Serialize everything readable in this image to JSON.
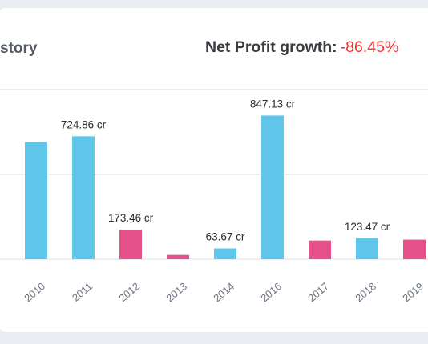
{
  "header": {
    "title_fragment": "story",
    "growth_label": "Net Profit growth:",
    "growth_value": "-86.45%"
  },
  "colors": {
    "positive": "#5fc6ea",
    "negative": "#e5508a",
    "grid": "#e6e9ee",
    "label": "#2b2b2b"
  },
  "chart_data": {
    "type": "bar",
    "categories": [
      "2010",
      "2011",
      "2012",
      "2013",
      "2014",
      "2016",
      "2017",
      "2018",
      "2019"
    ],
    "values": [
      690,
      724.86,
      173.46,
      25,
      63.67,
      847.13,
      110,
      123.47,
      115
    ],
    "value_labels": [
      "",
      "724.86 cr",
      "173.46 cr",
      "",
      "63.67 cr",
      "847.13 cr",
      "",
      "123.47 cr",
      ""
    ],
    "colors": [
      "#5fc6ea",
      "#5fc6ea",
      "#e5508a",
      "#e5508a",
      "#5fc6ea",
      "#5fc6ea",
      "#e5508a",
      "#5fc6ea",
      "#e5508a"
    ],
    "ylim": [
      0,
      1000
    ],
    "gridlines": [
      500,
      1000
    ],
    "grid": true,
    "title": "",
    "xlabel": "",
    "ylabel": ""
  }
}
